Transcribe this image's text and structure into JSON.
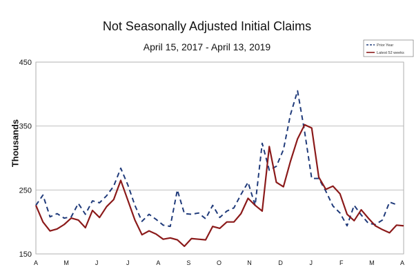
{
  "chart_data": {
    "type": "line",
    "title": "Not Seasonally Adjusted Initial Claims",
    "subtitle": "April 15, 2017 - April 13, 2019",
    "xlabel": "",
    "ylabel": "Thousands",
    "ylim": [
      150,
      450
    ],
    "yticks": [
      150,
      250,
      350,
      450
    ],
    "xlim": [
      0,
      52
    ],
    "xtick_labels": [
      "A",
      "M",
      "J",
      "J",
      "A",
      "S",
      "O",
      "N",
      "D",
      "J",
      "F",
      "M",
      "A"
    ],
    "xtick_positions": [
      0,
      4.3,
      8.6,
      13.0,
      17.3,
      21.6,
      25.9,
      30.2,
      34.6,
      38.9,
      43.2,
      47.5,
      51.8
    ],
    "grid": true,
    "legend_position": "top-right",
    "series": [
      {
        "name": "Prior Year",
        "color": "#1f3a7a",
        "style": "dashed",
        "values": [
          226,
          242,
          208,
          213,
          206,
          208,
          229,
          212,
          233,
          230,
          241,
          256,
          284,
          258,
          226,
          201,
          212,
          204,
          195,
          193,
          250,
          213,
          212,
          214,
          205,
          226,
          207,
          217,
          222,
          243,
          262,
          226,
          323,
          281,
          287,
          313,
          368,
          405,
          341,
          268,
          268,
          248,
          225,
          214,
          194,
          226,
          211,
          198,
          196,
          203,
          231,
          227
        ]
      },
      {
        "name": "Latest 52 weeks",
        "color": "#8b1a1a",
        "style": "solid",
        "values": [
          226,
          200,
          186,
          189,
          196,
          206,
          203,
          191,
          218,
          207,
          224,
          235,
          265,
          234,
          203,
          180,
          186,
          181,
          173,
          175,
          172,
          162,
          174,
          173,
          172,
          193,
          190,
          200,
          200,
          213,
          237,
          226,
          217,
          318,
          262,
          255,
          295,
          330,
          352,
          347,
          270,
          251,
          256,
          244,
          212,
          202,
          219,
          206,
          194,
          188,
          183,
          195,
          194
        ]
      }
    ]
  }
}
